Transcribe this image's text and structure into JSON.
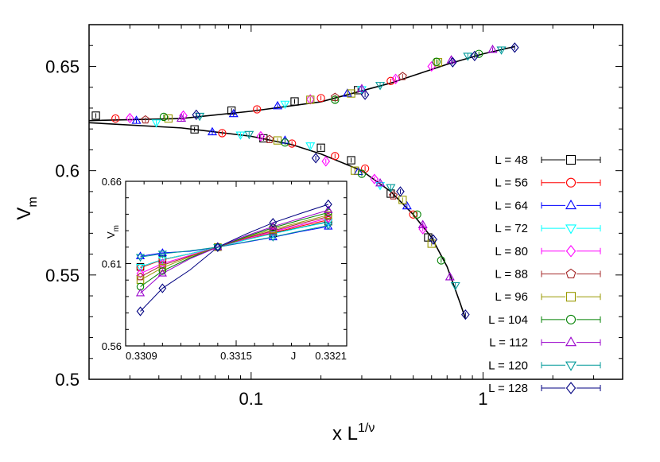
{
  "chart_data": {
    "type": "scatter",
    "xscale": "log",
    "xlim": [
      0.02,
      4.0
    ],
    "ylim": [
      0.5,
      0.67
    ],
    "xlabel": {
      "base": "x L",
      "exponent": "1/ν"
    },
    "ylabel": {
      "base": "V",
      "subscript": "m"
    },
    "x_ticks": [
      {
        "value": 0.1,
        "label": "0.1"
      },
      {
        "value": 1,
        "label": "1"
      }
    ],
    "y_ticks": [
      {
        "value": 0.5,
        "label": "0.5"
      },
      {
        "value": 0.55,
        "label": "0.55"
      },
      {
        "value": 0.6,
        "label": "0.6"
      },
      {
        "value": 0.65,
        "label": "0.65"
      }
    ],
    "legend_position": "right",
    "series": [
      {
        "name": "L = 48",
        "label": "L = 48",
        "color": "#000000",
        "marker": "square",
        "points": [
          [
            0.0214,
            0.6264
          ],
          [
            0.0823,
            0.6288
          ],
          [
            0.154,
            0.6332
          ],
          [
            0.289,
            0.6386
          ],
          [
            0.057,
            0.6198
          ],
          [
            0.113,
            0.6155
          ],
          [
            0.2,
            0.611
          ],
          [
            0.27,
            0.605
          ],
          [
            0.4,
            0.589
          ],
          [
            0.58,
            0.568
          ]
        ]
      },
      {
        "name": "L = 56",
        "label": "L = 56",
        "color": "#ff0000",
        "marker": "circle",
        "points": [
          [
            0.026,
            0.625
          ],
          [
            0.106,
            0.6294
          ],
          [
            0.2,
            0.6348
          ],
          [
            0.4,
            0.643
          ],
          [
            0.075,
            0.618
          ],
          [
            0.15,
            0.613
          ],
          [
            0.23,
            0.607
          ],
          [
            0.31,
            0.601
          ],
          [
            0.5,
            0.579
          ]
        ]
      },
      {
        "name": "L = 64",
        "label": "L = 64",
        "color": "#0000ff",
        "marker": "triangle-up",
        "points": [
          [
            0.032,
            0.624
          ],
          [
            0.084,
            0.6272
          ],
          [
            0.13,
            0.631
          ],
          [
            0.26,
            0.637
          ],
          [
            0.068,
            0.6185
          ],
          [
            0.14,
            0.6145
          ],
          [
            0.29,
            0.5995
          ],
          [
            0.47,
            0.583
          ]
        ]
      },
      {
        "name": "L = 72",
        "label": "L = 72",
        "color": "#00ffff",
        "marker": "triangle-down",
        "points": [
          [
            0.039,
            0.623
          ],
          [
            0.14,
            0.632
          ],
          [
            0.3,
            0.639
          ],
          [
            0.09,
            0.6172
          ],
          [
            0.18,
            0.612
          ],
          [
            0.36,
            0.593
          ]
        ]
      },
      {
        "name": "L = 80",
        "label": "L = 80",
        "color": "#ff00ff",
        "marker": "diamond",
        "points": [
          [
            0.03,
            0.6252
          ],
          [
            0.051,
            0.6264
          ],
          [
            0.18,
            0.6342
          ],
          [
            0.42,
            0.644
          ],
          [
            0.6,
            0.65
          ],
          [
            0.11,
            0.6165
          ],
          [
            0.21,
            0.6045
          ],
          [
            0.34,
            0.596
          ],
          [
            0.55,
            0.572
          ]
        ]
      },
      {
        "name": "L = 88",
        "label": "L = 88",
        "color": "#a52a2a",
        "marker": "pentagon",
        "points": [
          [
            0.035,
            0.6244
          ],
          [
            0.23,
            0.6352
          ],
          [
            0.45,
            0.6452
          ],
          [
            0.12,
            0.615
          ],
          [
            0.41,
            0.588
          ]
        ]
      },
      {
        "name": "L = 96",
        "label": "L = 96",
        "color": "#999900",
        "marker": "square",
        "points": [
          [
            0.044,
            0.625
          ],
          [
            0.18,
            0.634
          ],
          [
            0.27,
            0.637
          ],
          [
            0.64,
            0.652
          ],
          [
            0.13,
            0.6145
          ],
          [
            0.28,
            0.6
          ],
          [
            0.45,
            0.586
          ],
          [
            0.6,
            0.565
          ]
        ]
      },
      {
        "name": "L = 104",
        "label": "L = 104",
        "color": "#008000",
        "marker": "circle",
        "points": [
          [
            0.042,
            0.6258
          ],
          [
            0.23,
            0.634
          ],
          [
            0.63,
            0.6522
          ],
          [
            0.96,
            0.656
          ],
          [
            0.14,
            0.6135
          ],
          [
            0.3,
            0.5985
          ],
          [
            0.52,
            0.579
          ],
          [
            0.66,
            0.557
          ]
        ]
      },
      {
        "name": "L = 112",
        "label": "L = 112",
        "color": "#9900cc",
        "marker": "triangle-up",
        "points": [
          [
            0.05,
            0.625
          ],
          [
            0.3,
            0.6392
          ],
          [
            0.73,
            0.653
          ],
          [
            1.1,
            0.658
          ],
          [
            0.36,
            0.594
          ],
          [
            0.55,
            0.574
          ],
          [
            0.72,
            0.549
          ]
        ]
      },
      {
        "name": "L = 120",
        "label": "L = 120",
        "color": "#009999",
        "marker": "triangle-down",
        "points": [
          [
            0.06,
            0.6262
          ],
          [
            0.36,
            0.641
          ],
          [
            0.86,
            0.655
          ],
          [
            1.2,
            0.658
          ],
          [
            0.098,
            0.6175
          ],
          [
            0.4,
            0.592
          ],
          [
            0.76,
            0.545
          ]
        ]
      },
      {
        "name": "L = 128",
        "label": "L = 128",
        "color": "#000080",
        "marker": "diamond",
        "points": [
          [
            0.058,
            0.6268
          ],
          [
            0.31,
            0.6364
          ],
          [
            0.74,
            0.652
          ],
          [
            0.92,
            0.655
          ],
          [
            1.37,
            0.659
          ],
          [
            0.19,
            0.606
          ],
          [
            0.44,
            0.59
          ],
          [
            0.61,
            0.567
          ],
          [
            0.84,
            0.531
          ]
        ]
      }
    ],
    "fit_curves": [
      {
        "points": [
          [
            0.02,
            0.624
          ],
          [
            0.05,
            0.625
          ],
          [
            0.1,
            0.6285
          ],
          [
            0.2,
            0.633
          ],
          [
            0.4,
            0.642
          ],
          [
            0.7,
            0.651
          ],
          [
            1.0,
            0.656
          ],
          [
            1.37,
            0.6595
          ]
        ]
      },
      {
        "points": [
          [
            0.02,
            0.623
          ],
          [
            0.05,
            0.6205
          ],
          [
            0.1,
            0.6165
          ],
          [
            0.15,
            0.6125
          ],
          [
            0.2,
            0.608
          ],
          [
            0.3,
            0.6
          ],
          [
            0.4,
            0.59
          ],
          [
            0.5,
            0.579
          ],
          [
            0.6,
            0.568
          ],
          [
            0.7,
            0.554
          ],
          [
            0.8,
            0.536
          ],
          [
            0.84,
            0.529
          ]
        ]
      }
    ],
    "inset": {
      "xlabel": "J",
      "ylabel": {
        "base": "V",
        "subscript": "m"
      },
      "xlim": [
        0.3309,
        0.3321
      ],
      "ylim": [
        0.56,
        0.66
      ],
      "x_ticks": [
        {
          "value": 0.3309,
          "label": "0.3309"
        },
        {
          "value": 0.3315,
          "label": "0.3315"
        },
        {
          "value": 0.3321,
          "label": "0.3321"
        }
      ],
      "y_ticks": [
        {
          "value": 0.56,
          "label": "0.56"
        },
        {
          "value": 0.61,
          "label": "0.61"
        },
        {
          "value": 0.66,
          "label": "0.66"
        }
      ],
      "x": [
        0.33098,
        0.3311,
        0.33125,
        0.3314,
        0.33155,
        0.3317,
        0.33185,
        0.332
      ],
      "series": [
        {
          "name": "L = 48",
          "values": [
            0.608,
            0.6125,
            0.616,
            0.62,
            0.6244,
            0.6284,
            0.632,
            0.6355
          ]
        },
        {
          "name": "L = 56",
          "values": [
            0.6075,
            0.6123,
            0.6159,
            0.62,
            0.6245,
            0.6288,
            0.6328,
            0.6365
          ]
        },
        {
          "name": "L = 64",
          "values": [
            0.6145,
            0.6165,
            0.6175,
            0.62,
            0.623,
            0.626,
            0.6295,
            0.6325
          ]
        },
        {
          "name": "L = 72",
          "values": [
            0.608,
            0.6125,
            0.616,
            0.62,
            0.6243,
            0.6282,
            0.6318,
            0.6352
          ]
        },
        {
          "name": "L = 80",
          "values": [
            0.604,
            0.61,
            0.615,
            0.62,
            0.625,
            0.6295,
            0.6335,
            0.6375
          ]
        },
        {
          "name": "L = 88",
          "values": [
            0.602,
            0.609,
            0.6146,
            0.62,
            0.6254,
            0.63,
            0.6344,
            0.6385
          ]
        },
        {
          "name": "L = 96",
          "values": [
            0.6,
            0.6075,
            0.6142,
            0.62,
            0.6258,
            0.6308,
            0.6352,
            0.6395
          ]
        },
        {
          "name": "L = 104",
          "values": [
            0.596,
            0.6055,
            0.6135,
            0.62,
            0.6262,
            0.6318,
            0.6365,
            0.641
          ]
        },
        {
          "name": "L = 112",
          "values": [
            0.592,
            0.604,
            0.613,
            0.62,
            0.6268,
            0.6325,
            0.6375,
            0.6425
          ]
        },
        {
          "name": "L = 120",
          "values": [
            0.614,
            0.616,
            0.6178,
            0.62,
            0.6232,
            0.6262,
            0.6298,
            0.6332
          ]
        },
        {
          "name": "L = 128",
          "values": [
            0.581,
            0.595,
            0.6062,
            0.62,
            0.6278,
            0.6348,
            0.6405,
            0.646
          ]
        }
      ]
    }
  }
}
